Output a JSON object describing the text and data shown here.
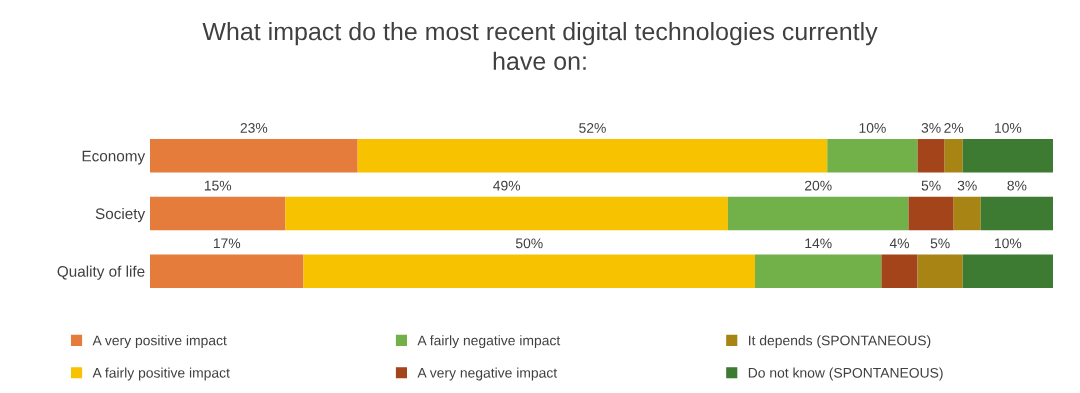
{
  "chart_data": {
    "type": "bar",
    "orientation": "horizontal",
    "stacked": true,
    "title": "What impact do the most recent digital technologies currently\nhave on:",
    "categories": [
      "Economy",
      "Society",
      "Quality of life"
    ],
    "xlim": [
      0,
      100
    ],
    "tick_labels": "y",
    "grid": false,
    "legend": "bottom",
    "series": [
      {
        "name": "A very positive impact",
        "color": "#e57c3c",
        "values": [
          23,
          15,
          17
        ],
        "value_labels": [
          "23%",
          "15%",
          "17%"
        ]
      },
      {
        "name": "A fairly positive impact",
        "color": "#f7c300",
        "values": [
          52,
          49,
          50
        ],
        "value_labels": [
          "52%",
          "49%",
          "50%"
        ]
      },
      {
        "name": "A fairly negative impact",
        "color": "#72b04a",
        "values": [
          10,
          20,
          14
        ],
        "value_labels": [
          "10%",
          "20%",
          "14%"
        ]
      },
      {
        "name": "A very negative impact",
        "color": "#a3441a",
        "values": [
          3,
          5,
          4
        ],
        "value_labels": [
          "3%",
          "5%",
          "4%"
        ]
      },
      {
        "name": "It depends (SPONTANEOUS)",
        "color": "#a88414",
        "values": [
          2,
          3,
          5
        ],
        "value_labels": [
          "2%",
          "3%",
          "5%"
        ]
      },
      {
        "name": "Do not know (SPONTANEOUS)",
        "color": "#3d7a32",
        "values": [
          10,
          8,
          10
        ],
        "value_labels": [
          "10%",
          "8%",
          "10%"
        ]
      }
    ]
  }
}
